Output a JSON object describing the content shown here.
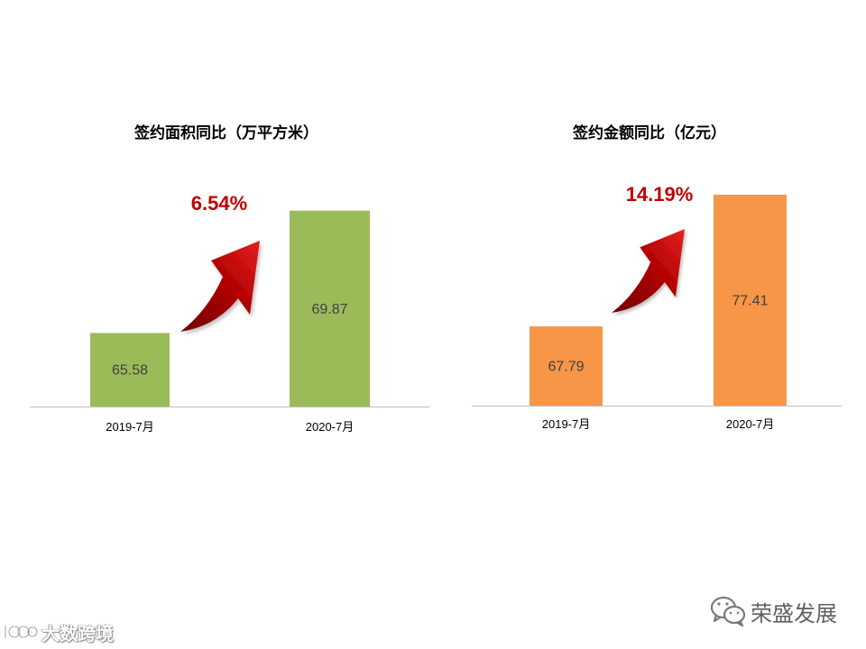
{
  "page": {
    "background": "#ffffff"
  },
  "colors": {
    "growth": "#c00000",
    "axis": "#bfbfbf",
    "arrow_dark": "#6e0000",
    "arrow_mid": "#b00000",
    "arrow_light": "#e52222"
  },
  "chart_data": [
    {
      "type": "bar",
      "title": "签约面积同比（万平方米）",
      "categories": [
        "2019-7月",
        "2020-7月"
      ],
      "values": [
        65.58,
        69.87
      ],
      "ylim": [
        63,
        71
      ],
      "grid": false,
      "bar_color": "#9bbb59",
      "annotation": {
        "text": "6.54%",
        "icon": "curved-up-arrow"
      }
    },
    {
      "type": "bar",
      "title": "签约金额同比（亿元）",
      "categories": [
        "2019-7月",
        "2020-7月"
      ],
      "values": [
        67.79,
        77.41
      ],
      "ylim": [
        62,
        78
      ],
      "grid": false,
      "bar_color": "#f79646",
      "annotation": {
        "text": "14.19%",
        "icon": "curved-up-arrow"
      }
    }
  ],
  "watermark": {
    "text": "大数跨境",
    "icon": "watermark-logo"
  },
  "brand": {
    "name": "荣盛发展",
    "icon": "wechat-icon"
  }
}
